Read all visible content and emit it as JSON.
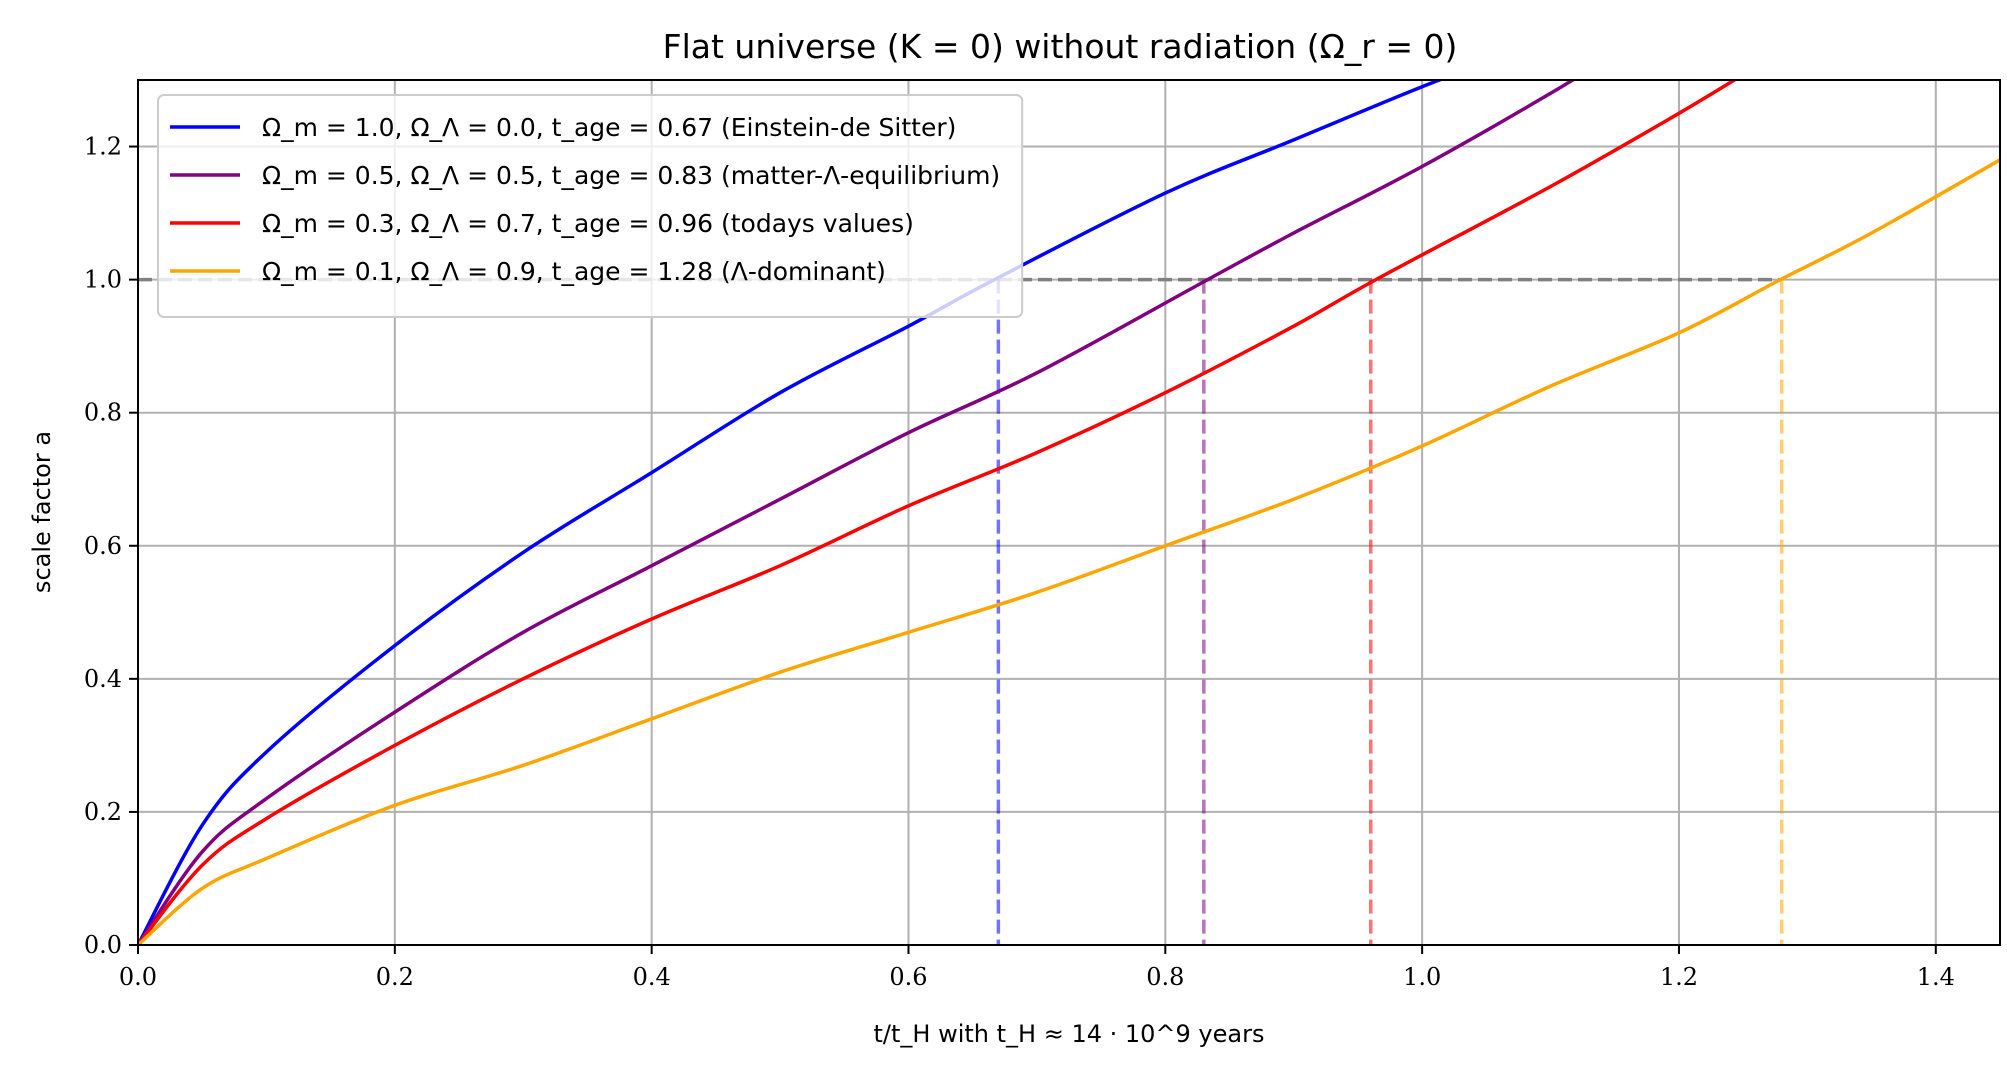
{
  "chart_data": {
    "type": "line",
    "title": "Flat universe (K = 0) without radiation (Ω_r = 0)",
    "xlabel": "t/t_H with t_H ≈ 14 · 10^9 years",
    "ylabel": "scale factor a",
    "xlim": [
      0.0,
      1.45
    ],
    "ylim": [
      0.0,
      1.3
    ],
    "xticks": [
      "0.0",
      "0.2",
      "0.4",
      "0.6",
      "0.8",
      "1.0",
      "1.2",
      "1.4"
    ],
    "yticks": [
      "0.0",
      "0.2",
      "0.4",
      "0.6",
      "0.8",
      "1.0",
      "1.2"
    ],
    "grid": true,
    "legend_position": "top-left",
    "reference_line": {
      "y": 1.0,
      "color": "#808080",
      "style": "dashed"
    },
    "series": [
      {
        "name": "Ω_m = 1.0, Ω_Λ = 0.0, t_age = 0.67 (Einstein-de Sitter)",
        "omega_m": 1.0,
        "omega_lambda": 0.0,
        "t_age": 0.67,
        "color": "#0000ff",
        "x": [
          0.0,
          0.05,
          0.1,
          0.2,
          0.3,
          0.4,
          0.5,
          0.6,
          0.667,
          0.8,
          0.9,
          1.0,
          1.07
        ],
        "y": [
          0.0,
          0.18,
          0.29,
          0.45,
          0.59,
          0.71,
          0.83,
          0.93,
          1.0,
          1.13,
          1.21,
          1.29,
          1.34
        ]
      },
      {
        "name": "Ω_m = 0.5, Ω_Λ = 0.5, t_age = 0.83 (matter-Λ-equilibrium)",
        "omega_m": 0.5,
        "omega_lambda": 0.5,
        "t_age": 0.83,
        "color": "#800080",
        "x": [
          0.0,
          0.05,
          0.1,
          0.2,
          0.3,
          0.4,
          0.5,
          0.6,
          0.7,
          0.833,
          0.9,
          1.0,
          1.1,
          1.15
        ],
        "y": [
          0.0,
          0.14,
          0.22,
          0.35,
          0.47,
          0.57,
          0.67,
          0.77,
          0.86,
          1.0,
          1.07,
          1.17,
          1.28,
          1.34
        ]
      },
      {
        "name": "Ω_m = 0.3, Ω_Λ = 0.7, t_age = 0.96 (todays values)",
        "omega_m": 0.3,
        "omega_lambda": 0.7,
        "t_age": 0.96,
        "color": "#ff0000",
        "x": [
          0.0,
          0.05,
          0.1,
          0.2,
          0.3,
          0.4,
          0.5,
          0.6,
          0.7,
          0.8,
          0.9,
          0.964,
          1.1,
          1.2,
          1.26
        ],
        "y": [
          0.0,
          0.12,
          0.19,
          0.3,
          0.4,
          0.49,
          0.57,
          0.66,
          0.74,
          0.83,
          0.93,
          1.0,
          1.14,
          1.25,
          1.32
        ]
      },
      {
        "name": "Ω_m = 0.1, Ω_Λ = 0.9, t_age = 1.28 (Λ-dominant)",
        "omega_m": 0.1,
        "omega_lambda": 0.9,
        "t_age": 1.28,
        "color": "#ffa500",
        "x": [
          0.0,
          0.05,
          0.1,
          0.2,
          0.3,
          0.4,
          0.5,
          0.6,
          0.7,
          0.8,
          0.9,
          1.0,
          1.1,
          1.2,
          1.279,
          1.35,
          1.45
        ],
        "y": [
          0.0,
          0.085,
          0.13,
          0.21,
          0.27,
          0.34,
          0.41,
          0.47,
          0.53,
          0.6,
          0.67,
          0.75,
          0.84,
          0.92,
          1.0,
          1.07,
          1.18
        ]
      }
    ]
  }
}
